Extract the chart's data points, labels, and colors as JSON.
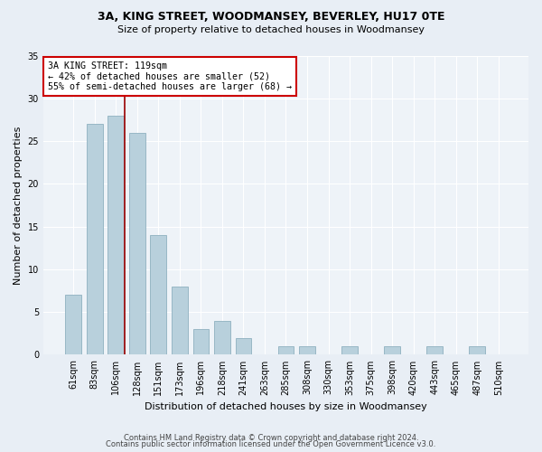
{
  "title1": "3A, KING STREET, WOODMANSEY, BEVERLEY, HU17 0TE",
  "title2": "Size of property relative to detached houses in Woodmansey",
  "xlabel": "Distribution of detached houses by size in Woodmansey",
  "ylabel": "Number of detached properties",
  "categories": [
    "61sqm",
    "83sqm",
    "106sqm",
    "128sqm",
    "151sqm",
    "173sqm",
    "196sqm",
    "218sqm",
    "241sqm",
    "263sqm",
    "285sqm",
    "308sqm",
    "330sqm",
    "353sqm",
    "375sqm",
    "398sqm",
    "420sqm",
    "443sqm",
    "465sqm",
    "487sqm",
    "510sqm"
  ],
  "values": [
    7,
    27,
    28,
    26,
    14,
    8,
    3,
    4,
    2,
    0,
    1,
    1,
    0,
    1,
    0,
    1,
    0,
    1,
    0,
    1,
    0
  ],
  "bar_color": "#b8d0dc",
  "bar_edge_color": "#8fb0c0",
  "annotation_text": "3A KING STREET: 119sqm\n← 42% of detached houses are smaller (52)\n55% of semi-detached houses are larger (68) →",
  "annotation_box_facecolor": "white",
  "annotation_box_edgecolor": "#cc0000",
  "ylim": [
    0,
    35
  ],
  "yticks": [
    0,
    5,
    10,
    15,
    20,
    25,
    30,
    35
  ],
  "footer1": "Contains HM Land Registry data © Crown copyright and database right 2024.",
  "footer2": "Contains public sector information licensed under the Open Government Licence v3.0.",
  "bg_color": "#e8eef5",
  "plot_bg_color": "#eef3f8",
  "grid_color": "#ffffff",
  "title1_fontsize": 9,
  "title2_fontsize": 8,
  "ylabel_fontsize": 8,
  "xlabel_fontsize": 8,
  "tick_fontsize": 7,
  "footer_fontsize": 6,
  "line_color": "#990000",
  "line_x_index": 2.5
}
